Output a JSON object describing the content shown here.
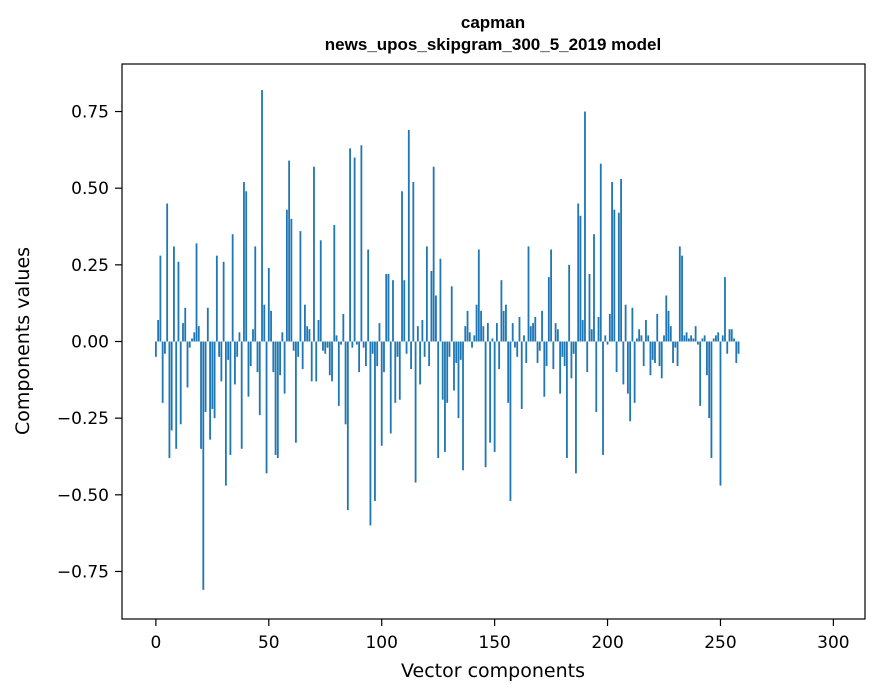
{
  "chart_data": {
    "type": "bar",
    "title": [
      "capman",
      "news_upos_skipgram_300_5_2019 model"
    ],
    "xlabel": "Vector components",
    "ylabel": "Components values",
    "xlim": [
      -15,
      314
    ],
    "ylim": [
      -0.905,
      0.905
    ],
    "xticks": [
      0,
      50,
      100,
      150,
      200,
      250,
      300
    ],
    "xtick_labels": [
      "0",
      "50",
      "100",
      "150",
      "200",
      "250",
      "300"
    ],
    "yticks": [
      -0.75,
      -0.5,
      -0.25,
      0.0,
      0.25,
      0.5,
      0.75
    ],
    "ytick_labels": [
      "−0.75",
      "−0.50",
      "−0.25",
      "0.00",
      "0.25",
      "0.50",
      "0.75"
    ],
    "grid": false,
    "bar_color": "#1f77b4",
    "x_start": 0,
    "values": [
      -0.05,
      0.07,
      0.28,
      -0.2,
      -0.04,
      0.45,
      -0.38,
      -0.29,
      0.31,
      -0.35,
      0.26,
      -0.27,
      0.06,
      0.11,
      -0.15,
      -0.02,
      0.01,
      0.03,
      0.32,
      0.05,
      -0.35,
      -0.81,
      -0.23,
      0.11,
      -0.32,
      -0.22,
      -0.25,
      0.28,
      -0.05,
      -0.13,
      0.26,
      -0.47,
      -0.06,
      -0.37,
      0.35,
      -0.14,
      -0.05,
      0.03,
      -0.35,
      0.52,
      0.49,
      -0.18,
      -0.08,
      0.04,
      0.31,
      -0.1,
      -0.24,
      0.82,
      0.12,
      -0.43,
      0.24,
      0.1,
      -0.1,
      -0.37,
      -0.38,
      -0.11,
      0.03,
      -0.17,
      0.43,
      0.59,
      0.4,
      -0.03,
      -0.33,
      -0.05,
      0.36,
      -0.09,
      0.12,
      0.05,
      0.04,
      -0.13,
      0.57,
      -0.13,
      0.07,
      0.33,
      -0.03,
      -0.04,
      -0.02,
      -0.11,
      -0.13,
      0.38,
      0.02,
      -0.21,
      -0.01,
      0.09,
      -0.27,
      -0.55,
      0.63,
      -0.02,
      0.6,
      -0.01,
      -0.1,
      0.64,
      -0.02,
      -0.08,
      0.3,
      -0.6,
      -0.04,
      -0.52,
      -0.08,
      0.06,
      -0.34,
      -0.1,
      0.22,
      0.22,
      -0.3,
      0.2,
      -0.2,
      -0.05,
      -0.19,
      0.49,
      0.2,
      -0.04,
      0.69,
      -0.09,
      0.52,
      -0.46,
      0.05,
      -0.14,
      0.07,
      -0.05,
      0.31,
      -0.08,
      0.23,
      0.57,
      0.15,
      -0.38,
      0.27,
      -0.19,
      -0.36,
      -0.2,
      -0.05,
      0.18,
      -0.16,
      -0.07,
      -0.25,
      -0.06,
      -0.42,
      0.05,
      0.1,
      0.03,
      -0.02,
      0.02,
      0.12,
      0.3,
      0.1,
      0.05,
      -0.41,
      0.06,
      -0.33,
      0.01,
      -0.36,
      0.06,
      -0.09,
      0.2,
      0.1,
      0.12,
      -0.2,
      -0.52,
      0.06,
      -0.02,
      -0.05,
      0.08,
      -0.22,
      0.02,
      -0.07,
      0.31,
      0.05,
      0.06,
      0.08,
      -0.07,
      -0.03,
      0.1,
      -0.18,
      -0.08,
      0.21,
      0.3,
      -0.09,
      0.06,
      0.04,
      -0.17,
      -0.05,
      -0.08,
      -0.38,
      0.25,
      -0.12,
      -0.04,
      -0.43,
      0.45,
      0.41,
      0.07,
      0.75,
      -0.1,
      0.22,
      0.04,
      0.35,
      -0.23,
      0.08,
      0.58,
      -0.37,
      0.02,
      -0.01,
      0.09,
      0.52,
      0.43,
      -0.1,
      0.42,
      0.53,
      -0.14,
      0.12,
      -0.17,
      -0.26,
      0.11,
      -0.2,
      0.01,
      0.04,
      0.02,
      -0.08,
      0.07,
      0.02,
      -0.11,
      -0.06,
      -0.07,
      0.09,
      -0.08,
      -0.12,
      0.02,
      0.15,
      0.1,
      0.05,
      -0.07,
      -0.02,
      -0.08,
      0.31,
      0.28,
      0.02,
      0.03,
      0.01,
      0.02,
      0.01,
      0.05,
      -0.01,
      -0.21,
      0.01,
      0.02,
      -0.11,
      -0.25,
      -0.38,
      0.01,
      0.02,
      0.03,
      -0.47,
      0.02,
      0.21,
      -0.04,
      0.04,
      0.04,
      0.01,
      -0.07,
      -0.04
    ]
  }
}
